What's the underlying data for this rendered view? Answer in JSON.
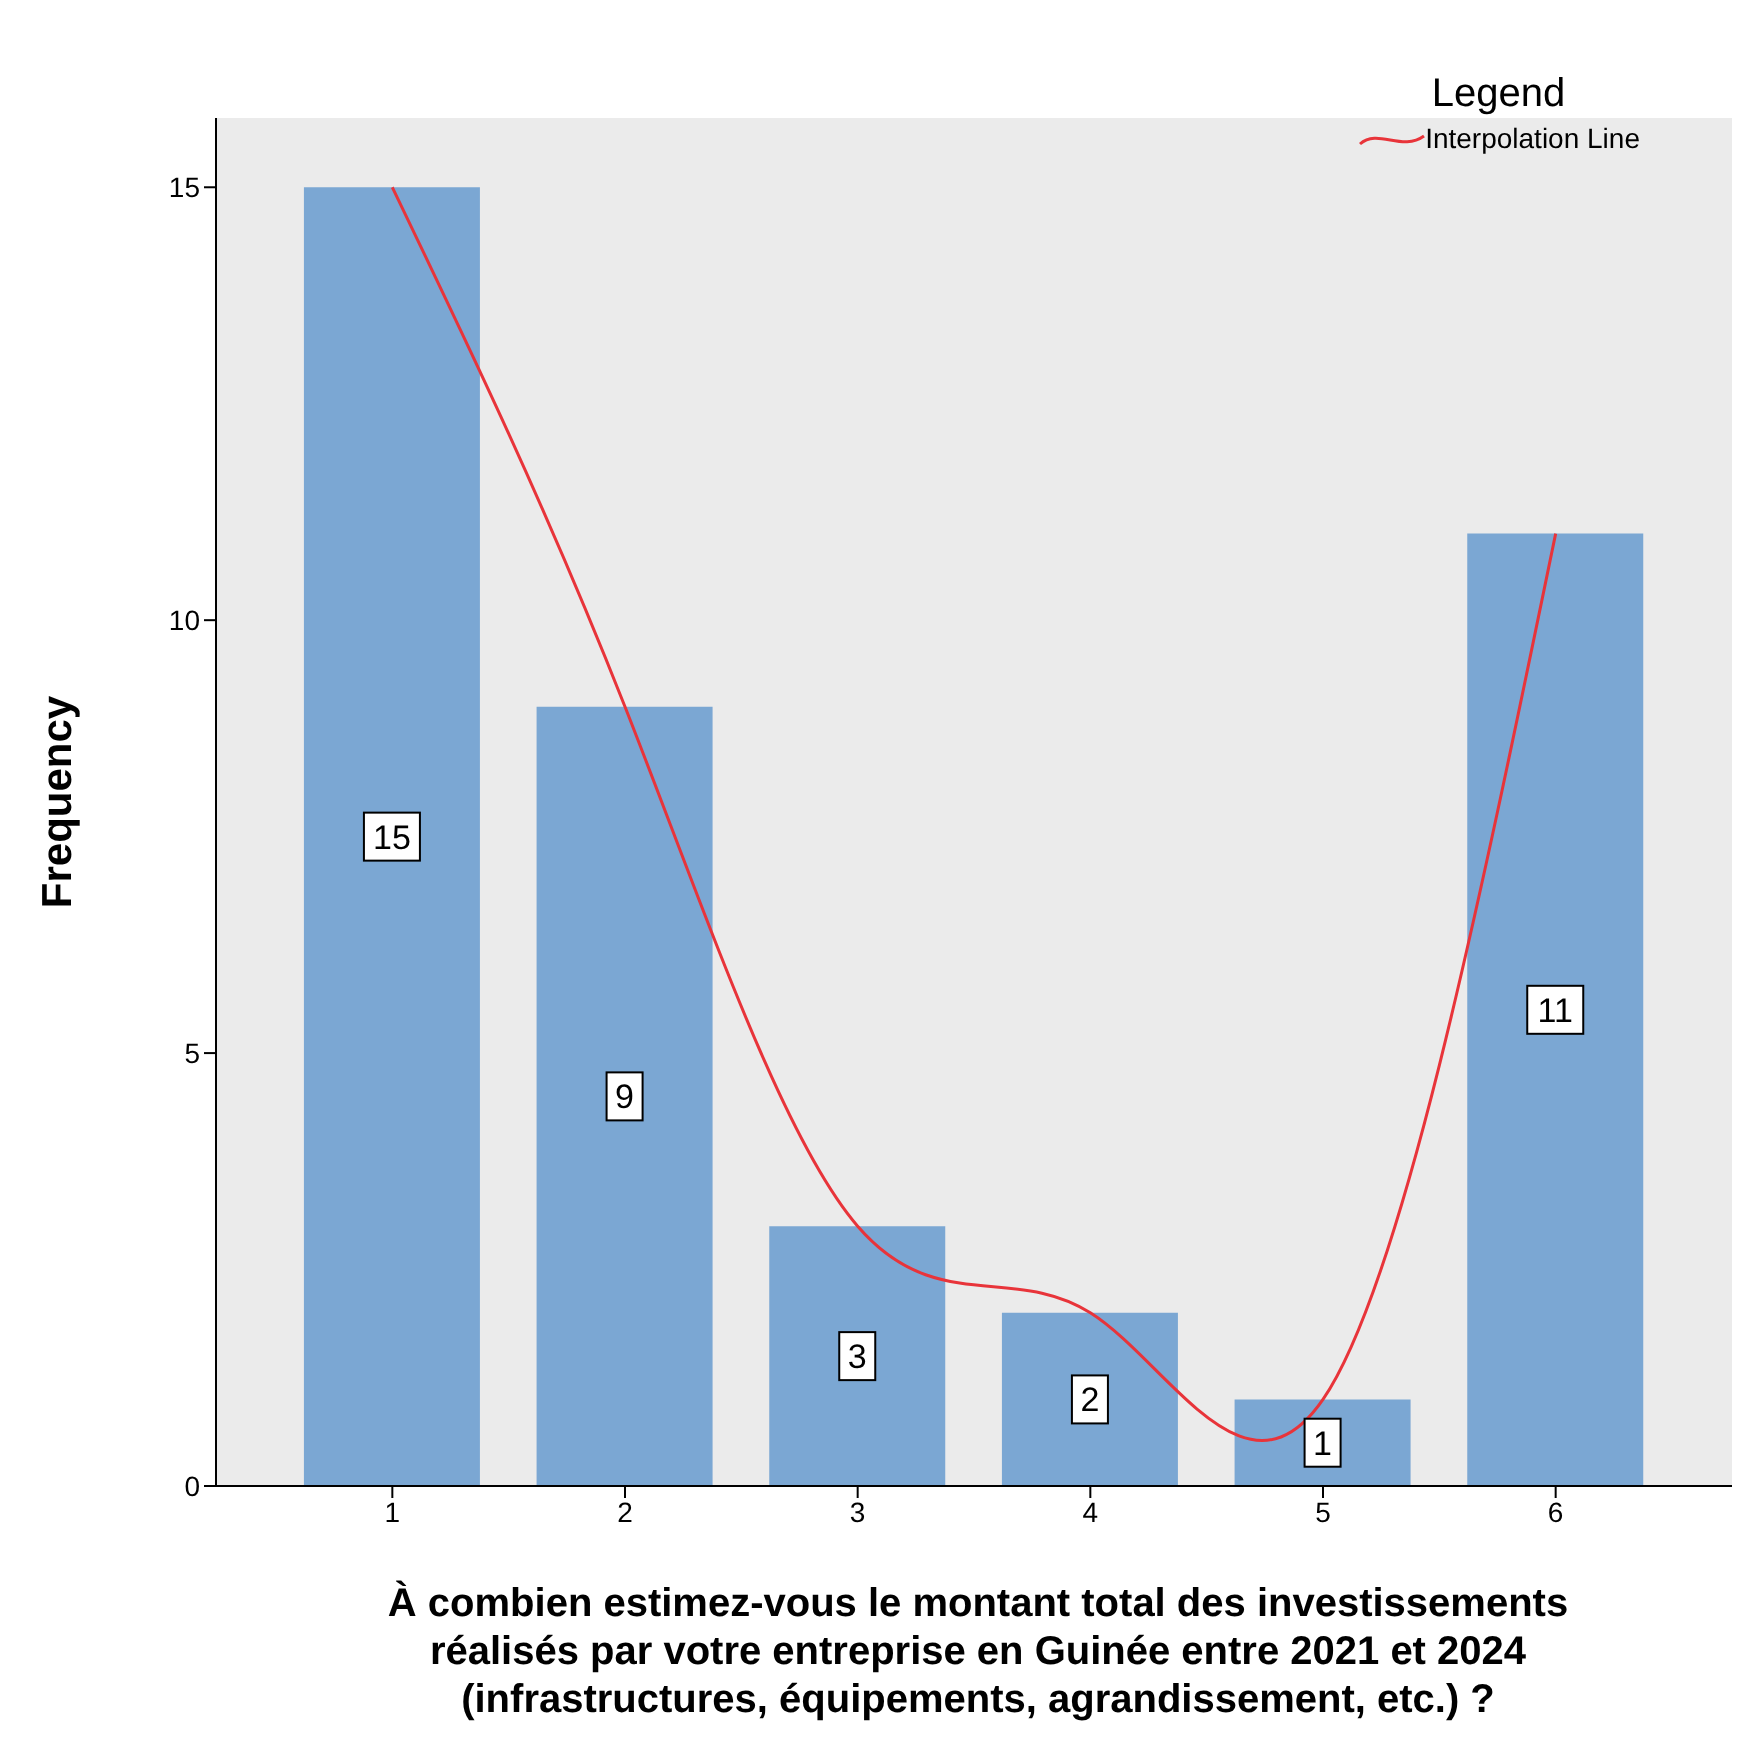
{
  "chart_data": {
    "type": "bar",
    "xlabel": "À combien estimez-vous le montant total des investissements\nréalisés par votre entreprise en Guinée entre 2021 et 2024\n(infrastructures, équipements, agrandissement, etc.) ?",
    "ylabel": "Frequency",
    "legend_title": "Legend",
    "categories": [
      "1",
      "2",
      "3",
      "4",
      "5",
      "6"
    ],
    "series": [
      {
        "color": "#7ba7d3",
        "values": [
          15,
          9,
          3,
          2,
          1,
          11
        ],
        "value_labels": [
          "15",
          "9",
          "3",
          "2",
          "1",
          "11"
        ]
      },
      {
        "type": "line",
        "name": "Interpolation Line",
        "color": "#e8343a",
        "values": [
          15,
          9,
          3,
          2,
          1,
          11
        ]
      }
    ],
    "ylim": [
      0,
      15.8
    ],
    "yticks": [
      0,
      5,
      10,
      15
    ],
    "grid": false,
    "legend": "top right",
    "marker": "none",
    "line_style": "solid"
  }
}
